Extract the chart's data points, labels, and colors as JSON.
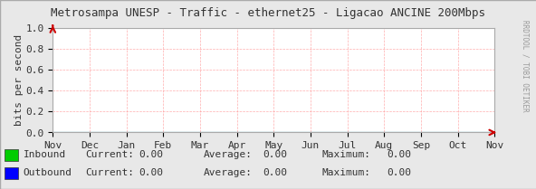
{
  "title": "Metrosampa UNESP - Traffic - ethernet25 - Ligacao ANCINE 200Mbps",
  "ylabel": "bits per second",
  "x_labels": [
    "Nov",
    "Dec",
    "Jan",
    "Feb",
    "Mar",
    "Apr",
    "May",
    "Jun",
    "Jul",
    "Aug",
    "Sep",
    "Oct",
    "Nov"
  ],
  "y_ticks": [
    0.0,
    0.2,
    0.4,
    0.6,
    0.8,
    1.0
  ],
  "ylim": [
    0.0,
    1.0
  ],
  "bg_color": "#e8e8e8",
  "plot_bg_color": "#ffffff",
  "grid_color": "#ff9999",
  "border_color": "#aaaaaa",
  "title_color": "#333333",
  "inbound_color": "#00cc00",
  "outbound_color": "#0000ff",
  "legend": [
    {
      "label": "Inbound",
      "color": "#00cc00",
      "current": "0.00",
      "average": "0.00",
      "maximum": "0.00"
    },
    {
      "label": "Outbound",
      "color": "#0000ff",
      "current": "0.00",
      "average": "0.00",
      "maximum": "0.00"
    }
  ],
  "watermark": "RRDTOOL / TOBI OETIKER",
  "axis_color": "#333333",
  "arrow_color": "#cc0000",
  "font_size": 8,
  "title_font_size": 9
}
